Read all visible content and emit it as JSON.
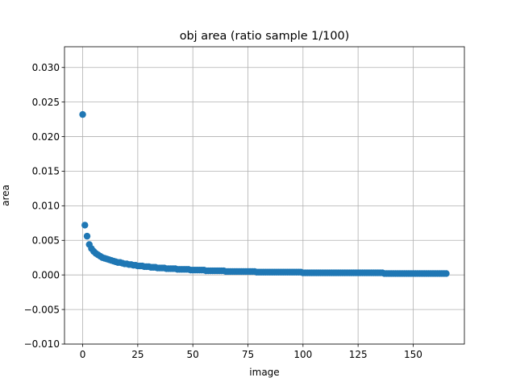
{
  "chart_data": {
    "type": "scatter",
    "title": "obj area (ratio sample 1/100)",
    "xlabel": "image",
    "ylabel": "area",
    "xlim": [
      -8.25,
      173.25
    ],
    "ylim": [
      -0.01,
      0.033
    ],
    "x_ticks": [
      0,
      25,
      50,
      75,
      100,
      125,
      150
    ],
    "y_ticks": [
      -0.01,
      -0.005,
      0.0,
      0.005,
      0.01,
      0.015,
      0.02,
      0.025,
      0.03
    ],
    "x_tick_labels": [
      "0",
      "25",
      "50",
      "75",
      "100",
      "125",
      "150"
    ],
    "y_tick_labels": [
      "−0.010",
      "−0.005",
      "0.000",
      "0.005",
      "0.010",
      "0.015",
      "0.020",
      "0.025",
      "0.030"
    ],
    "grid": true,
    "colors": {
      "marker": "#1f77b4",
      "grid": "#b0b0b0",
      "axes": "#000000"
    },
    "series": [
      {
        "x": [
          0,
          1,
          2,
          3,
          4,
          5,
          6,
          7,
          8,
          9,
          10,
          11,
          12,
          13,
          14,
          15,
          16,
          17,
          18,
          19,
          20,
          21,
          22,
          23,
          24,
          25,
          26,
          27,
          28,
          29,
          30,
          31,
          32,
          33,
          34,
          35,
          36,
          37,
          38,
          39,
          40,
          41,
          42,
          43,
          44,
          45,
          46,
          47,
          48,
          49,
          50,
          51,
          52,
          53,
          54,
          55,
          56,
          57,
          58,
          59,
          60,
          61,
          62,
          63,
          64,
          65,
          66,
          67,
          68,
          69,
          70,
          71,
          72,
          73,
          74,
          75,
          76,
          77,
          78,
          79,
          80,
          81,
          82,
          83,
          84,
          85,
          86,
          87,
          88,
          89,
          90,
          91,
          92,
          93,
          94,
          95,
          96,
          97,
          98,
          99,
          100,
          101,
          102,
          103,
          104,
          105,
          106,
          107,
          108,
          109,
          110,
          111,
          112,
          113,
          114,
          115,
          116,
          117,
          118,
          119,
          120,
          121,
          122,
          123,
          124,
          125,
          126,
          127,
          128,
          129,
          130,
          131,
          132,
          133,
          134,
          135,
          136,
          137,
          138,
          139,
          140,
          141,
          142,
          143,
          144,
          145,
          146,
          147,
          148,
          149,
          150,
          151,
          152,
          153,
          154,
          155,
          156,
          157,
          158,
          159,
          160,
          161,
          162,
          163,
          164,
          165
        ],
        "y": [
          0.0232,
          0.0072,
          0.0056,
          0.0044,
          0.0038,
          0.0034,
          0.0031,
          0.0029,
          0.0027,
          0.0025,
          0.0024,
          0.0023,
          0.0022,
          0.0021,
          0.002,
          0.0019,
          0.0018,
          0.0018,
          0.0017,
          0.0016,
          0.0016,
          0.0015,
          0.0015,
          0.0014,
          0.0014,
          0.0013,
          0.0013,
          0.0013,
          0.0012,
          0.0012,
          0.0012,
          0.0011,
          0.0011,
          0.0011,
          0.001,
          0.001,
          0.001,
          0.001,
          0.0009,
          0.0009,
          0.0009,
          0.0009,
          0.0009,
          0.0008,
          0.0008,
          0.0008,
          0.0008,
          0.0008,
          0.0008,
          0.0007,
          0.0007,
          0.0007,
          0.0007,
          0.0007,
          0.0007,
          0.0007,
          0.0006,
          0.0006,
          0.0006,
          0.0006,
          0.0006,
          0.0006,
          0.0006,
          0.0006,
          0.0006,
          0.0005,
          0.0005,
          0.0005,
          0.0005,
          0.0005,
          0.0005,
          0.0005,
          0.0005,
          0.0005,
          0.0005,
          0.0005,
          0.0005,
          0.0005,
          0.0005,
          0.0004,
          0.0004,
          0.0004,
          0.0004,
          0.0004,
          0.0004,
          0.0004,
          0.0004,
          0.0004,
          0.0004,
          0.0004,
          0.0004,
          0.0004,
          0.0004,
          0.0004,
          0.0004,
          0.0004,
          0.0004,
          0.0004,
          0.0004,
          0.0004,
          0.0003,
          0.0003,
          0.0003,
          0.0003,
          0.0003,
          0.0003,
          0.0003,
          0.0003,
          0.0003,
          0.0003,
          0.0003,
          0.0003,
          0.0003,
          0.0003,
          0.0003,
          0.0003,
          0.0003,
          0.0003,
          0.0003,
          0.0003,
          0.0003,
          0.0003,
          0.0003,
          0.0003,
          0.0003,
          0.0003,
          0.0003,
          0.0003,
          0.0003,
          0.0003,
          0.0003,
          0.0003,
          0.0003,
          0.0003,
          0.0003,
          0.0003,
          0.0003,
          0.0002,
          0.0002,
          0.0002,
          0.0002,
          0.0002,
          0.0002,
          0.0002,
          0.0002,
          0.0002,
          0.0002,
          0.0002,
          0.0002,
          0.0002,
          0.0002,
          0.0002,
          0.0002,
          0.0002,
          0.0002,
          0.0002,
          0.0002,
          0.0002,
          0.0002,
          0.0002,
          0.0002,
          0.0002,
          0.0002,
          0.0002,
          0.0002,
          0.0002
        ]
      }
    ]
  }
}
